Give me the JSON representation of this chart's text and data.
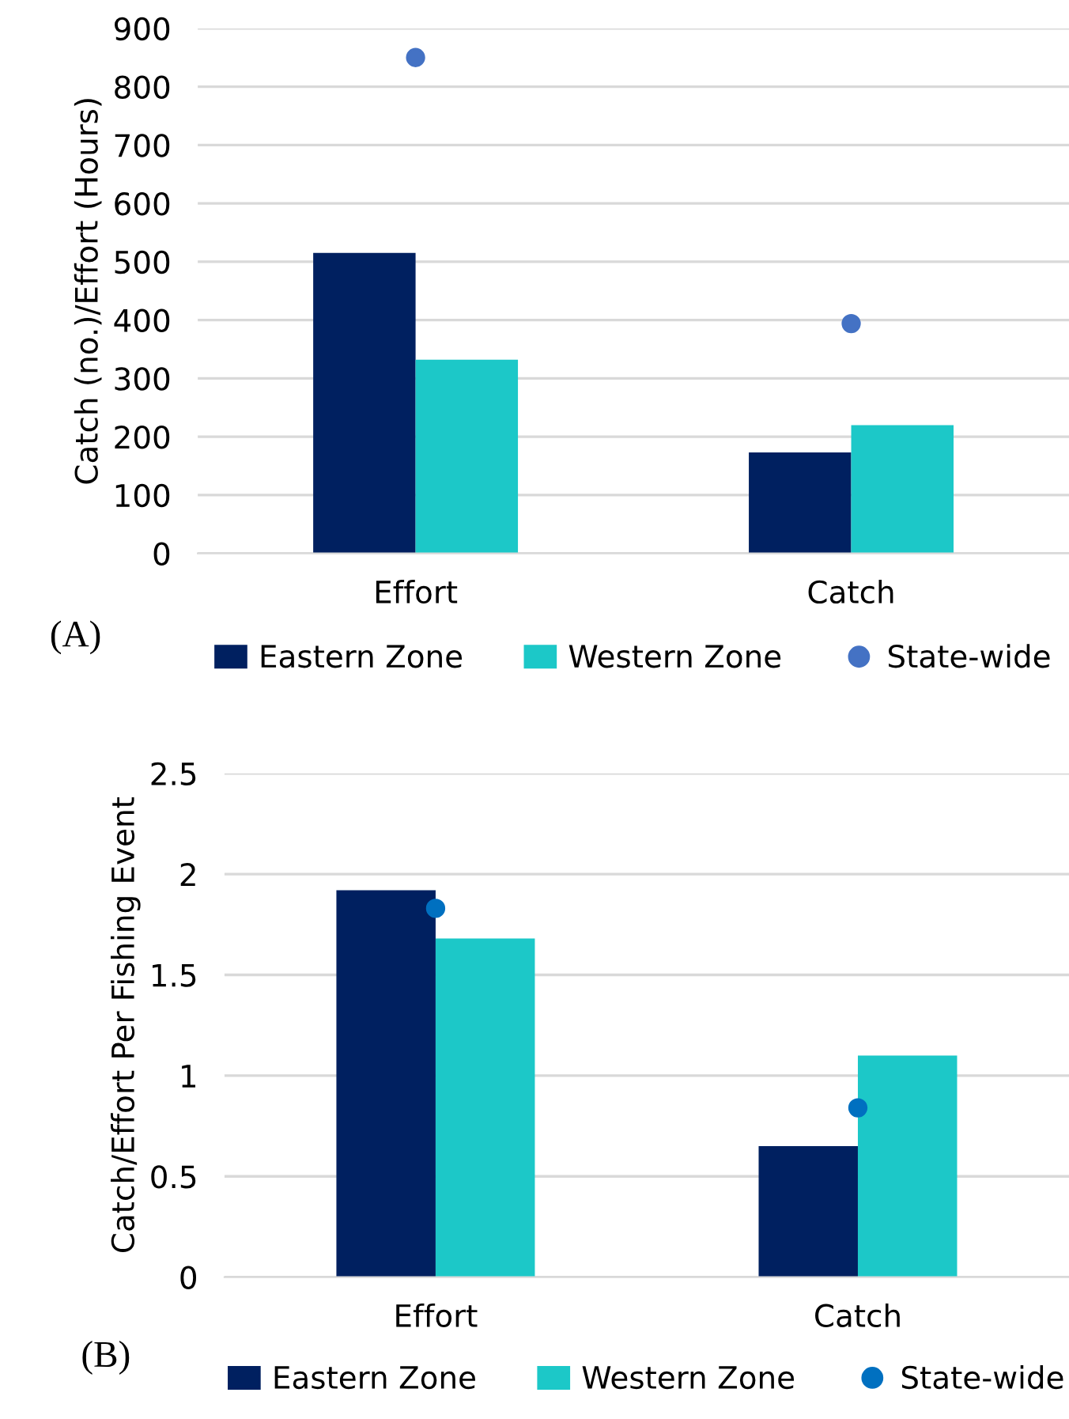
{
  "chart_data": [
    {
      "type": "bar",
      "ylabel": "Catch (no.)/Effort (Hours)",
      "categories": [
        "Effort",
        "Catch"
      ],
      "series": [
        {
          "name": "Eastern Zone",
          "color": "#002060",
          "values": [
            515,
            173
          ]
        },
        {
          "name": "Western Zone",
          "color": "#1cc8c8",
          "values": [
            332,
            220
          ]
        },
        {
          "name": "State-wide",
          "type": "scatter",
          "color": "#4472c4",
          "x": [
            "Effort",
            "Catch"
          ],
          "values": [
            850,
            394
          ]
        }
      ],
      "ylim": [
        0,
        900
      ],
      "yticks": [
        0,
        100,
        200,
        300,
        400,
        500,
        600,
        700,
        800,
        900
      ],
      "grid": "y",
      "legend": "bottom",
      "marker": "circle",
      "annotations": [
        "(A)"
      ]
    },
    {
      "type": "bar",
      "ylabel": "Catch/Effort Per Fishing Event",
      "categories": [
        "Effort",
        "Catch"
      ],
      "series": [
        {
          "name": "Eastern Zone",
          "color": "#002060",
          "values": [
            1.92,
            0.65
          ]
        },
        {
          "name": "Western Zone",
          "color": "#1cc8c8",
          "values": [
            1.68,
            1.1
          ]
        },
        {
          "name": "State-wide",
          "type": "scatter",
          "color": "#0070c0",
          "x": [
            "Effort",
            "Catch"
          ],
          "values": [
            1.83,
            0.84
          ]
        }
      ],
      "ylim": [
        0,
        2.5
      ],
      "yticks": [
        0,
        0.5,
        1,
        1.5,
        2,
        2.5
      ],
      "grid": "y",
      "legend": "bottom",
      "marker": "circle",
      "annotations": [
        "(B)"
      ]
    }
  ]
}
